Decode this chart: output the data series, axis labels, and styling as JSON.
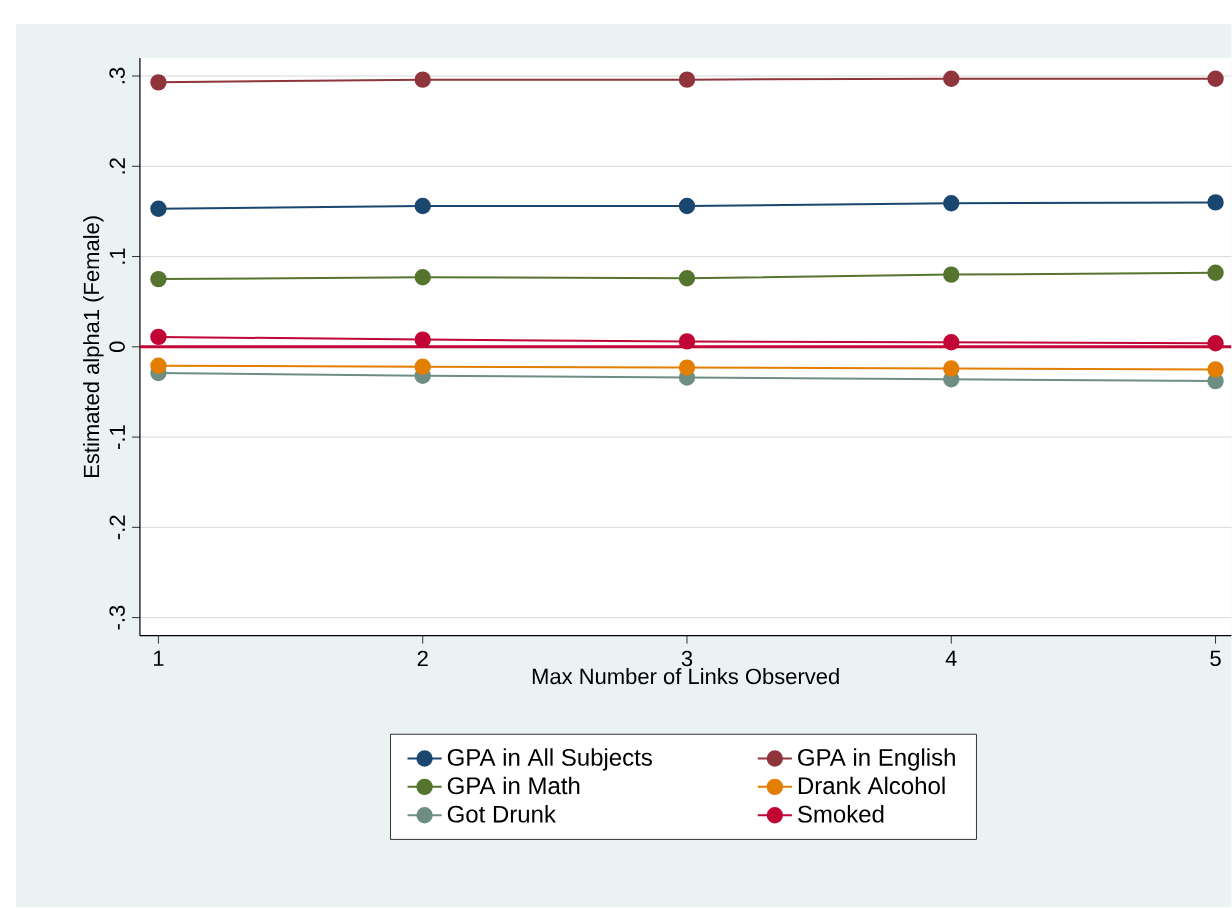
{
  "chart_data": {
    "type": "line",
    "xlabel": "Max Number of Links Observed",
    "ylabel": "Estimated alpha1 (Female)",
    "x": [
      1,
      2,
      3,
      4,
      5
    ],
    "series": [
      {
        "name": "GPA in All Subjects",
        "color": "#1a476f",
        "values": [
          0.153,
          0.156,
          0.156,
          0.159,
          0.16
        ]
      },
      {
        "name": "GPA in English",
        "color": "#90353b",
        "values": [
          0.293,
          0.296,
          0.296,
          0.297,
          0.297
        ]
      },
      {
        "name": "GPA in Math",
        "color": "#55752f",
        "values": [
          0.075,
          0.077,
          0.076,
          0.08,
          0.082
        ]
      },
      {
        "name": "Drank Alcohol",
        "color": "#e37e00",
        "values": [
          -0.021,
          -0.022,
          -0.023,
          -0.024,
          -0.025
        ]
      },
      {
        "name": "Got Drunk",
        "color": "#6e8e84",
        "values": [
          -0.029,
          -0.032,
          -0.034,
          -0.036,
          -0.038
        ]
      },
      {
        "name": "Smoked",
        "color": "#c10534",
        "values": [
          0.011,
          0.008,
          0.006,
          0.005,
          0.004
        ]
      }
    ],
    "xlim": [
      0.93,
      5.06
    ],
    "ylim": [
      -0.32,
      0.32
    ],
    "xticks": [
      1,
      2,
      3,
      4,
      5
    ],
    "yticks": [
      {
        "value": -0.3,
        "label": "-.3"
      },
      {
        "value": -0.2,
        "label": "-.2"
      },
      {
        "value": -0.1,
        "label": "-.1"
      },
      {
        "value": 0,
        "label": "0"
      },
      {
        "value": 0.1,
        "label": ".1"
      },
      {
        "value": 0.2,
        "label": ".2"
      },
      {
        "value": 0.3,
        "label": ".3"
      }
    ],
    "grid": "y",
    "legend": "bottom",
    "marker": "circle",
    "line_style": "solid",
    "ref_lines": [
      {
        "axis": "y",
        "value": 0,
        "color": "#c10534"
      }
    ]
  }
}
